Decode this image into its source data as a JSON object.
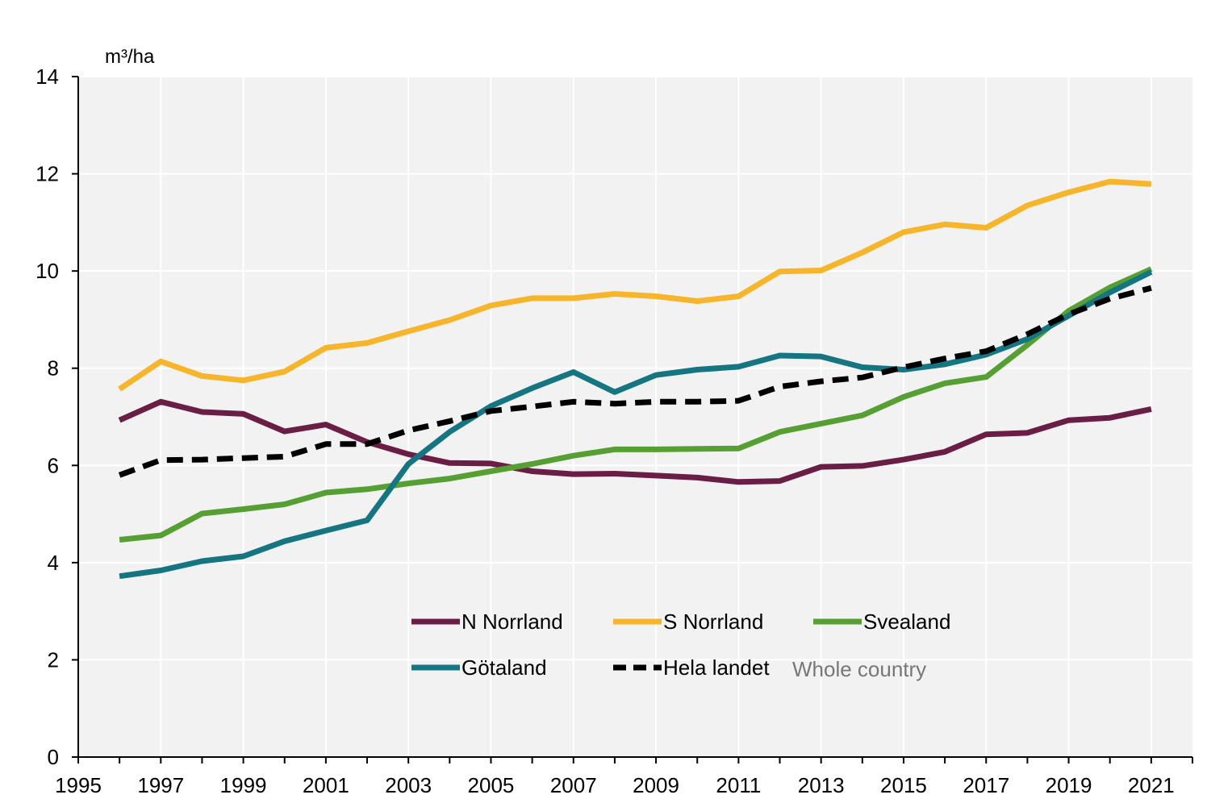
{
  "chart_data": {
    "type": "line",
    "title": "",
    "ylabel": "m³/ha",
    "xlabel": "",
    "xlim": [
      1995,
      2022
    ],
    "ylim": [
      0,
      14
    ],
    "x_ticks": [
      1995,
      1997,
      1999,
      2001,
      2003,
      2005,
      2007,
      2009,
      2011,
      2013,
      2015,
      2017,
      2019,
      2021
    ],
    "y_ticks": [
      0,
      2,
      4,
      6,
      8,
      10,
      12,
      14
    ],
    "grid": true,
    "legend_position": "bottom-center",
    "x": [
      1996,
      1997,
      1998,
      1999,
      2000,
      2001,
      2002,
      2003,
      2004,
      2005,
      2006,
      2007,
      2008,
      2009,
      2010,
      2011,
      2012,
      2013,
      2014,
      2015,
      2016,
      2017,
      2018,
      2019,
      2020,
      2021
    ],
    "series": [
      {
        "name": "N Norrland",
        "color": "#6b1e45",
        "dash": false,
        "values": [
          6.93,
          7.31,
          7.1,
          7.06,
          6.7,
          6.84,
          6.48,
          6.23,
          6.05,
          6.04,
          5.88,
          5.82,
          5.83,
          5.79,
          5.75,
          5.66,
          5.68,
          5.97,
          5.99,
          6.12,
          6.28,
          6.64,
          6.67,
          6.93,
          6.98,
          7.16
        ]
      },
      {
        "name": "S Norrland",
        "color": "#f7b52c",
        "dash": false,
        "values": [
          7.57,
          8.14,
          7.84,
          7.75,
          7.93,
          8.42,
          8.52,
          8.76,
          8.99,
          9.29,
          9.44,
          9.44,
          9.53,
          9.48,
          9.38,
          9.48,
          9.99,
          10.01,
          10.38,
          10.8,
          10.96,
          10.89,
          11.35,
          11.62,
          11.84,
          11.79
        ]
      },
      {
        "name": "Svealand",
        "color": "#56a033",
        "dash": false,
        "values": [
          4.47,
          4.56,
          5.01,
          5.1,
          5.2,
          5.44,
          5.51,
          5.63,
          5.73,
          5.88,
          6.03,
          6.2,
          6.33,
          6.33,
          6.34,
          6.35,
          6.69,
          6.86,
          7.03,
          7.41,
          7.69,
          7.82,
          8.48,
          9.18,
          9.66,
          10.04
        ]
      },
      {
        "name": "Götaland",
        "color": "#157682",
        "dash": false,
        "values": [
          3.72,
          3.84,
          4.03,
          4.13,
          4.44,
          4.66,
          4.87,
          6.03,
          6.69,
          7.22,
          7.59,
          7.92,
          7.51,
          7.86,
          7.97,
          8.03,
          8.26,
          8.24,
          8.02,
          7.97,
          8.08,
          8.28,
          8.6,
          9.08,
          9.56,
          9.98
        ]
      },
      {
        "name": "Hela landet",
        "name_en": "Whole country",
        "color": "#000000",
        "dash": true,
        "values": [
          5.8,
          6.11,
          6.12,
          6.15,
          6.18,
          6.44,
          6.44,
          6.72,
          6.91,
          7.12,
          7.21,
          7.31,
          7.27,
          7.31,
          7.31,
          7.33,
          7.62,
          7.73,
          7.81,
          8.02,
          8.2,
          8.35,
          8.7,
          9.11,
          9.43,
          9.65
        ]
      }
    ]
  }
}
